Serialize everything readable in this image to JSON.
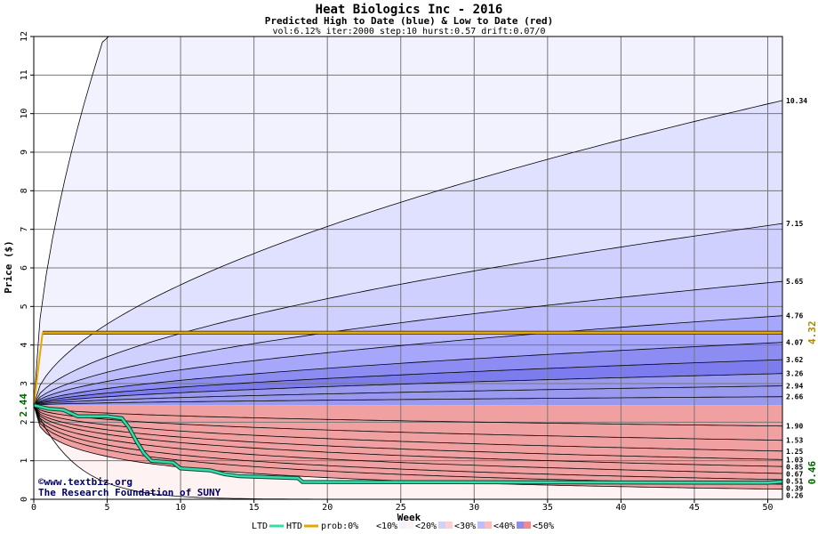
{
  "chart_data": {
    "type": "area",
    "title": "Heat Biologics Inc - 2016",
    "subtitle": "Predicted High to Date (blue) &  Low to Date (red)",
    "params": "vol:6.12% iter:2000 step:10 hurst:0.57 drift:0.07/0",
    "xlabel": "Week",
    "ylabel": "Price ($)",
    "xlim": [
      0,
      51
    ],
    "ylim": [
      0,
      12
    ],
    "xticks": [
      0,
      5,
      10,
      15,
      20,
      25,
      30,
      35,
      40,
      45,
      50
    ],
    "yticks": [
      0,
      1,
      2,
      3,
      4,
      5,
      6,
      7,
      8,
      9,
      10,
      11,
      12
    ],
    "grid": true,
    "start_price": 2.44,
    "start_label": "2.44",
    "current_price": 4.32,
    "current_label": "4.32",
    "last_ltd": 0.46,
    "last_ltd_label": "0.46",
    "high_curves": [
      {
        "end": 10.34,
        "label": "10.34"
      },
      {
        "end": 7.15,
        "label": "7.15"
      },
      {
        "end": 5.65,
        "label": "5.65"
      },
      {
        "end": 4.76,
        "label": "4.76"
      },
      {
        "end": 4.07,
        "label": "4.07"
      },
      {
        "end": 3.62,
        "label": "3.62"
      },
      {
        "end": 3.26,
        "label": "3.26"
      },
      {
        "end": 2.94,
        "label": "2.94"
      },
      {
        "end": 2.66,
        "label": "2.66"
      }
    ],
    "low_curves": [
      {
        "end": 1.9,
        "label": "1.90"
      },
      {
        "end": 1.53,
        "label": "1.53"
      },
      {
        "end": 1.25,
        "label": "1.25"
      },
      {
        "end": 1.03,
        "label": "1.03"
      },
      {
        "end": 0.85,
        "label": "0.85"
      },
      {
        "end": 0.67,
        "label": "0.67"
      },
      {
        "end": 0.51,
        "label": "0.51"
      },
      {
        "end": 0.39,
        "label": "0.39"
      },
      {
        "end": 0.26,
        "label": "0.26"
      }
    ],
    "ltd_series": [
      [
        0,
        2.44
      ],
      [
        1,
        2.35
      ],
      [
        2,
        2.32
      ],
      [
        3,
        2.15
      ],
      [
        5,
        2.15
      ],
      [
        6,
        2.1
      ],
      [
        6.5,
        1.85
      ],
      [
        7,
        1.5
      ],
      [
        7.5,
        1.2
      ],
      [
        8,
        1.0
      ],
      [
        9.5,
        0.95
      ],
      [
        10,
        0.8
      ],
      [
        12,
        0.75
      ],
      [
        13,
        0.65
      ],
      [
        14,
        0.6
      ],
      [
        18,
        0.55
      ],
      [
        18.3,
        0.45
      ],
      [
        50,
        0.43
      ],
      [
        51,
        0.46
      ]
    ],
    "legend": {
      "ltd": "LTD",
      "htd": "HTD",
      "prob": "prob:0%",
      "p10": "<10%",
      "p20": "<20%",
      "p30": "<30%",
      "p40": "<40%",
      "p50": "<50%"
    },
    "colors": {
      "ltd": "#33ddaa",
      "htd": "#e6a800",
      "blue_bands": [
        "#f2f2ff",
        "#e0e0ff",
        "#d0d0ff",
        "#bcbcff",
        "#a6a6fa",
        "#8c8cf2",
        "#7c7cee",
        "#9999f0"
      ],
      "red_bands": [
        "#fff2f2",
        "#ffe0e0",
        "#ffd0d0",
        "#fcbcbc",
        "#f8a6a6",
        "#f28c8c",
        "#ee7c7c",
        "#f0a0a0"
      ]
    }
  },
  "credit": {
    "line1": "©www.textbiz.org",
    "line2": "The Research Foundation of SUNY"
  }
}
